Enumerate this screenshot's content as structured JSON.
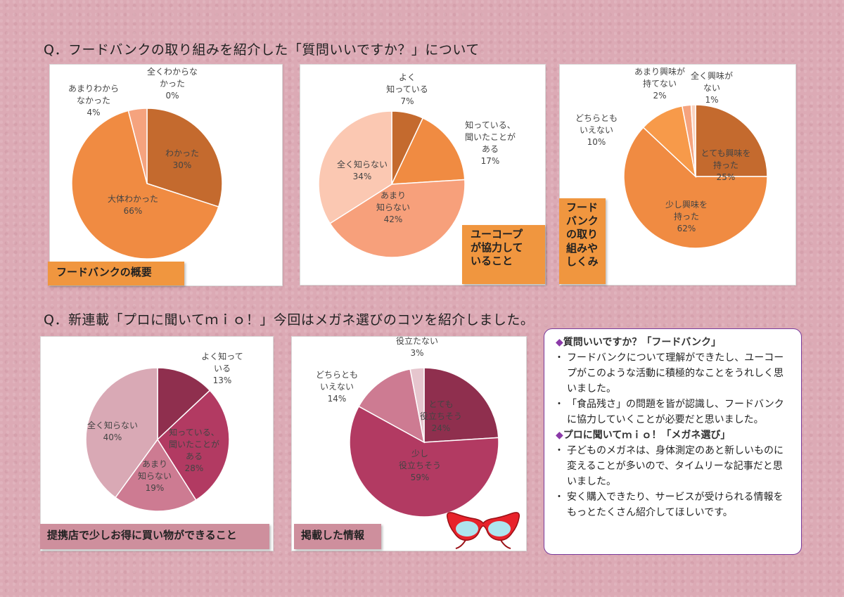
{
  "questions": {
    "q1": "Q．フードバンクの取り組みを紹介した「質問いいですか？」について",
    "q2": "Q．新連載「プロに聞いてｍｉｏ！」今回はメガネ選びのコツを紹介しました。"
  },
  "tags": {
    "c1": "フードバンクの概要",
    "c2": "ユーコープ\nが協力して\nいること",
    "c3": "フード\nバンク\nの取り\n組みや\nしくみ",
    "c4": "提携店で少しお得に買い物ができること",
    "c5": "掲載した情報"
  },
  "chart_data": [
    {
      "type": "pie",
      "title": "フードバンクの概要",
      "labels": [
        "わかった",
        "大体わかった",
        "あまりわからなかった",
        "全くわからなかった"
      ],
      "values": [
        30,
        66,
        4,
        0
      ],
      "display": [
        "30%",
        "66%",
        "4%",
        "0%"
      ],
      "label_lines": [
        [
          "わかった"
        ],
        [
          "大体わかった"
        ],
        [
          "あまりわから",
          "なかった"
        ],
        [
          "全くわからな",
          "かった"
        ]
      ],
      "colors": [
        "#c46a2e",
        "#f08b42",
        "#f5a37e",
        "#fbd3bf"
      ]
    },
    {
      "type": "pie",
      "title": "ユーコープが協力していること",
      "labels": [
        "よく知っている",
        "知っている、聞いたことがある",
        "あまり知らない",
        "全く知らない"
      ],
      "values": [
        7,
        17,
        42,
        34
      ],
      "display": [
        "7%",
        "17%",
        "42%",
        "34%"
      ],
      "label_lines": [
        [
          "よく",
          "知っている"
        ],
        [
          "知っている、",
          "聞いたことが",
          "ある"
        ],
        [
          "あまり",
          "知らない"
        ],
        [
          "全く知らない"
        ]
      ],
      "colors": [
        "#c46a2e",
        "#f08b42",
        "#f7a07b",
        "#fbc8b2"
      ]
    },
    {
      "type": "pie",
      "title": "フードバンクの取り組みやしくみ",
      "labels": [
        "とても興味を持った",
        "少し興味を持った",
        "どちらともいえない",
        "あまり興味が持てない",
        "全く興味がない"
      ],
      "values": [
        25,
        62,
        10,
        2,
        1
      ],
      "display": [
        "25%",
        "62%",
        "10%",
        "2%",
        "1%"
      ],
      "label_lines": [
        [
          "とても興味を",
          "持った"
        ],
        [
          "少し興味を",
          "持った"
        ],
        [
          "どちらとも",
          "いえない"
        ],
        [
          "あまり興味が",
          "持てない"
        ],
        [
          "全く興味が",
          "ない"
        ]
      ],
      "colors": [
        "#c46a2e",
        "#f08b42",
        "#f79a4a",
        "#f5a37e",
        "#fbd3bf"
      ]
    },
    {
      "type": "pie",
      "title": "提携店で少しお得に買い物ができること",
      "labels": [
        "よく知っている",
        "知っている、聞いたことがある",
        "あまり知らない",
        "全く知らない"
      ],
      "values": [
        13,
        28,
        19,
        40
      ],
      "display": [
        "13%",
        "28%",
        "19%",
        "40%"
      ],
      "label_lines": [
        [
          "よく知って",
          "いる"
        ],
        [
          "知っている、",
          "聞いたことが",
          "ある"
        ],
        [
          "あまり",
          "知らない"
        ],
        [
          "全く知らない"
        ]
      ],
      "colors": [
        "#8f2f4e",
        "#b23a62",
        "#cd7b92",
        "#d9a9b5"
      ]
    },
    {
      "type": "pie",
      "title": "掲載した情報",
      "labels": [
        "とても役立ちそう",
        "少し役立ちそう",
        "どちらともいえない",
        "役立たない"
      ],
      "values": [
        24,
        59,
        14,
        3
      ],
      "display": [
        "24%",
        "59%",
        "14%",
        "3%"
      ],
      "label_lines": [
        [
          "とても",
          "役立ちそう"
        ],
        [
          "少し",
          "役立ちそう"
        ],
        [
          "どちらとも",
          "いえない"
        ],
        [
          "役立たない"
        ]
      ],
      "colors": [
        "#8f2f4e",
        "#b23a62",
        "#cd7b92",
        "#e6c6ce"
      ]
    }
  ],
  "comments": {
    "title1": "質問いいですか？「フードバンク」",
    "items1": [
      "フードバンクについて理解ができたし、ユーコープがこのような活動に積極的なことをうれしく思いました。",
      "「食品残さ」の問題を皆が認識し、フードバンクに協力していくことが必要だと思いました。"
    ],
    "title2": "プロに聞いてｍｉｏ！「メガネ選び」",
    "items2": [
      "子どものメガネは、身体測定のあと新しいものに変えることが多いので、タイムリーな記事だと思いました。",
      "安く購入できたり、サービスが受けられる情報をもっとたくさん紹介してほしいです。"
    ]
  },
  "icons": {
    "glasses": "red-glasses-icon"
  }
}
